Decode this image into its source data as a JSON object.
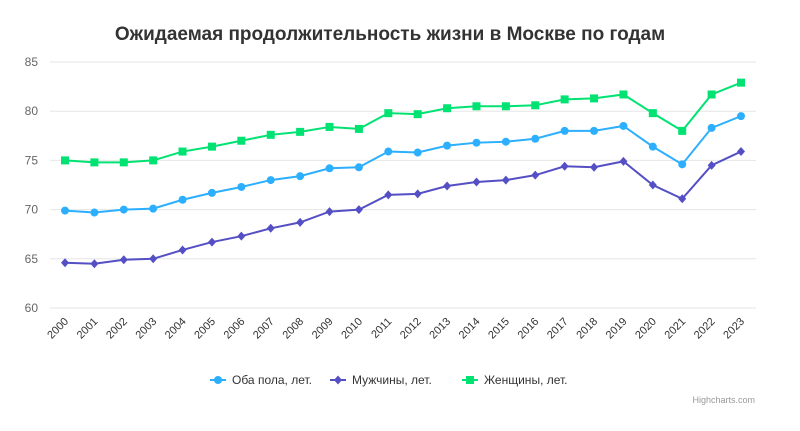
{
  "chart_data": {
    "type": "line",
    "title": "Ожидаемая продолжительность жизни в Москве по годам",
    "xlabel": "",
    "ylabel": "",
    "ylim": [
      60,
      85
    ],
    "yticks": [
      60,
      65,
      70,
      75,
      80,
      85
    ],
    "grid": true,
    "legend_position": "bottom-center",
    "categories": [
      "2000",
      "2001",
      "2002",
      "2003",
      "2004",
      "2005",
      "2006",
      "2007",
      "2008",
      "2009",
      "2010",
      "2011",
      "2012",
      "2013",
      "2014",
      "2015",
      "2016",
      "2017",
      "2018",
      "2019",
      "2020",
      "2021",
      "2022",
      "2023"
    ],
    "series": [
      {
        "name": "Оба пола, лет.",
        "color": "#2caffe",
        "marker": "circle",
        "values": [
          69.9,
          69.7,
          70.0,
          70.1,
          71.0,
          71.7,
          72.3,
          73.0,
          73.4,
          74.2,
          74.3,
          75.9,
          75.8,
          76.5,
          76.8,
          76.9,
          77.2,
          78.0,
          78.0,
          78.5,
          76.4,
          74.6,
          78.3,
          79.5
        ]
      },
      {
        "name": "Мужчины, лет.",
        "color": "#544fc5",
        "marker": "diamond",
        "values": [
          64.6,
          64.5,
          64.9,
          65.0,
          65.9,
          66.7,
          67.3,
          68.1,
          68.7,
          69.8,
          70.0,
          71.5,
          71.6,
          72.4,
          72.8,
          73.0,
          73.5,
          74.4,
          74.3,
          74.9,
          72.5,
          71.1,
          74.5,
          75.9
        ]
      },
      {
        "name": "Женщины, лет.",
        "color": "#00e272",
        "marker": "square",
        "values": [
          75.0,
          74.8,
          74.8,
          75.0,
          75.9,
          76.4,
          77.0,
          77.6,
          77.9,
          78.4,
          78.2,
          79.8,
          79.7,
          80.3,
          80.5,
          80.5,
          80.6,
          81.2,
          81.3,
          81.7,
          79.8,
          78.0,
          81.7,
          82.9
        ]
      }
    ]
  },
  "credits": "Highcharts.com"
}
